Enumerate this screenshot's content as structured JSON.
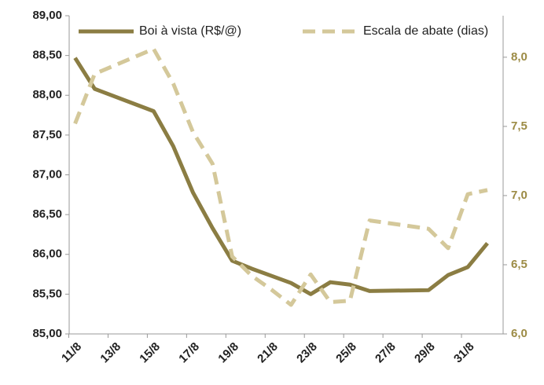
{
  "chart_data": {
    "type": "line",
    "x": [
      11,
      12,
      15,
      16,
      17,
      18,
      19,
      20,
      21,
      22,
      23,
      24,
      25,
      26,
      29,
      30,
      31,
      32
    ],
    "xlim": [
      10.7,
      32.8
    ],
    "xticks": [
      {
        "value": 11,
        "label": "11/8"
      },
      {
        "value": 13,
        "label": "13/8"
      },
      {
        "value": 15,
        "label": "15/8"
      },
      {
        "value": 17,
        "label": "17/8"
      },
      {
        "value": 19,
        "label": "19/8"
      },
      {
        "value": 21,
        "label": "21/8"
      },
      {
        "value": 23,
        "label": "23/8"
      },
      {
        "value": 25,
        "label": "25/8"
      },
      {
        "value": 27,
        "label": "27/8"
      },
      {
        "value": 29,
        "label": "29/8"
      },
      {
        "value": 31,
        "label": "31/8"
      }
    ],
    "ylim": [
      85,
      89
    ],
    "yticks": [
      {
        "value": 85,
        "label": "85,00"
      },
      {
        "value": 85.5,
        "label": "85,50"
      },
      {
        "value": 86,
        "label": "86,00"
      },
      {
        "value": 86.5,
        "label": "86,50"
      },
      {
        "value": 87,
        "label": "87,00"
      },
      {
        "value": 87.5,
        "label": "87,50"
      },
      {
        "value": 88,
        "label": "88,00"
      },
      {
        "value": 88.5,
        "label": "88,50"
      },
      {
        "value": 89,
        "label": "89,00"
      }
    ],
    "y2lim": [
      6,
      8.3
    ],
    "y2ticks": [
      {
        "value": 6,
        "label": "6,0"
      },
      {
        "value": 6.5,
        "label": "6,5"
      },
      {
        "value": 7,
        "label": "7,0"
      },
      {
        "value": 7.5,
        "label": "7,5"
      },
      {
        "value": 8,
        "label": "8,0"
      }
    ],
    "legend": "top",
    "series": [
      {
        "name": "Boi à vista (R$/@)",
        "color": "#8b7d43",
        "dashed": false,
        "values": [
          88.47,
          88.08,
          87.8,
          87.36,
          86.78,
          86.33,
          85.92,
          85.82,
          85.73,
          85.64,
          85.5,
          85.65,
          85.62,
          85.54,
          85.55,
          85.74,
          85.84,
          86.14
        ]
      },
      {
        "name": "Escala de abate (dias)",
        "color": "#d4c89a",
        "dashed": true,
        "axis": "y2",
        "values": [
          7.52,
          7.88,
          8.06,
          7.81,
          7.46,
          7.23,
          6.56,
          6.42,
          6.32,
          6.21,
          6.43,
          6.23,
          6.24,
          6.82,
          6.76,
          6.62,
          7.01,
          7.04
        ]
      }
    ]
  }
}
